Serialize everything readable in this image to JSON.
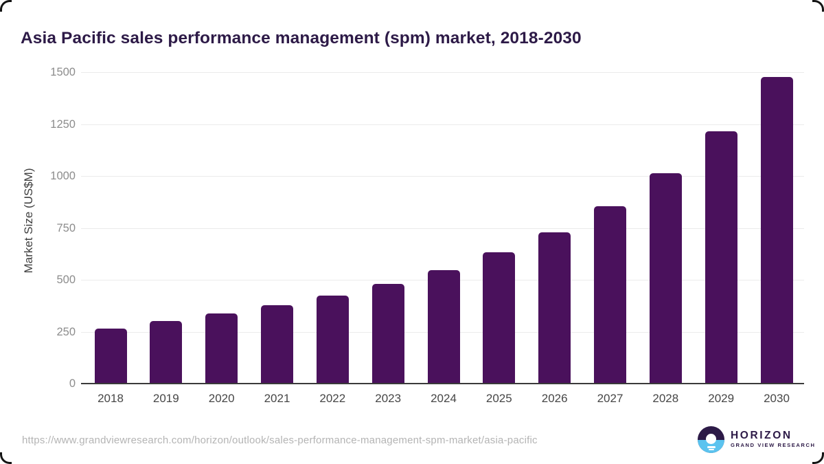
{
  "page": {
    "title": "Asia Pacific sales performance management (spm) market, 2018-2030"
  },
  "chart_data": {
    "type": "bar",
    "title": "Asia Pacific sales performance management (spm) market, 2018-2030",
    "categories": [
      "2018",
      "2019",
      "2020",
      "2021",
      "2022",
      "2023",
      "2024",
      "2025",
      "2026",
      "2027",
      "2028",
      "2029",
      "2030"
    ],
    "values": [
      265,
      300,
      337,
      377,
      425,
      480,
      548,
      631,
      730,
      856,
      1012,
      1215,
      1476
    ],
    "series_name": "Market Size",
    "xlabel": "",
    "ylabel": "Market Size (US$M)",
    "ylim": [
      0,
      1500
    ],
    "yticks": [
      0,
      250,
      500,
      750,
      1000,
      1250,
      1500
    ],
    "grid": "horizontal-only",
    "legend": "none",
    "bar_color": "#4a115c"
  },
  "footer": {
    "source_url": "https://www.grandviewresearch.com/horizon/outlook/sales-performance-management-spm-market/asia-pacific",
    "logo": {
      "name": "HORIZON",
      "subtitle": "GRAND VIEW RESEARCH"
    }
  },
  "colors": {
    "title_text": "#2d1a47",
    "bar": "#4a115c",
    "gridline": "#ebebeb",
    "axis_line": "#3a3a3a",
    "y_tick_text": "#8c8c8c",
    "x_tick_text": "#464646",
    "axis_label_text": "#3f3f3f",
    "url_text": "#b4b4b4",
    "logo_purple": "#2d1a47",
    "logo_blue": "#5bc3ef"
  }
}
